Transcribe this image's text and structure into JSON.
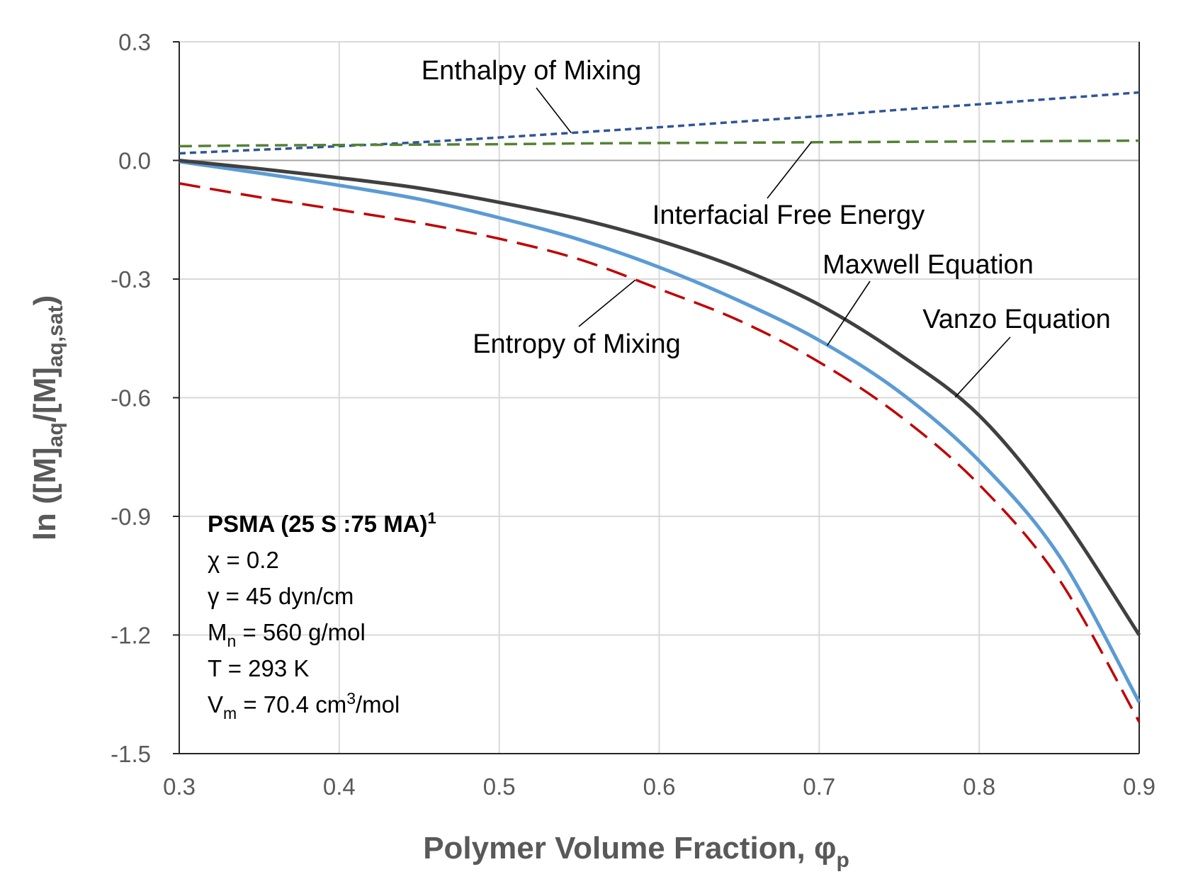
{
  "chart_data": {
    "type": "line",
    "title": "",
    "xlabel": "Polymer Volume Fraction, φp",
    "xlabel_main": "Polymer Volume Fraction, φ",
    "xlabel_sub": "p",
    "ylabel_parts": [
      "ln ([M]",
      "aq",
      "/[M]",
      "aq,sat",
      ")"
    ],
    "xlim": [
      0.3,
      0.9
    ],
    "ylim": [
      -1.5,
      0.3
    ],
    "x_ticks": [
      0.3,
      0.4,
      0.5,
      0.6,
      0.7,
      0.8,
      0.9
    ],
    "x_tick_labels": [
      "0.3",
      "0.4",
      "0.5",
      "0.6",
      "0.7",
      "0.8",
      "0.9"
    ],
    "y_ticks": [
      0.3,
      0.0,
      -0.3,
      -0.6,
      -0.9,
      -1.2,
      -1.5
    ],
    "y_tick_labels": [
      "0.3",
      "0.0",
      "-0.3",
      "-0.6",
      "-0.9",
      "-1.2",
      "-1.5"
    ],
    "grid": true,
    "x": [
      0.3,
      0.35,
      0.4,
      0.45,
      0.5,
      0.55,
      0.6,
      0.65,
      0.7,
      0.75,
      0.8,
      0.85,
      0.9
    ],
    "series": [
      {
        "name": "Enthalpy of Mixing",
        "color": "#2F5597",
        "dash": "short",
        "values": [
          0.018,
          0.027,
          0.036,
          0.046,
          0.058,
          0.071,
          0.084,
          0.098,
          0.112,
          0.128,
          0.142,
          0.157,
          0.172
        ]
      },
      {
        "name": "Interfacial Free Energy",
        "color": "#548235",
        "dash": "medium",
        "values": [
          0.036,
          0.038,
          0.039,
          0.04,
          0.041,
          0.043,
          0.044,
          0.045,
          0.046,
          0.047,
          0.048,
          0.049,
          0.05
        ]
      },
      {
        "name": "Entropy of Mixing",
        "color": "#C00000",
        "dash": "long",
        "values": [
          -0.058,
          -0.093,
          -0.125,
          -0.158,
          -0.198,
          -0.25,
          -0.325,
          -0.405,
          -0.51,
          -0.645,
          -0.82,
          -1.06,
          -1.42
        ]
      },
      {
        "name": "Maxwell Equation",
        "color": "#5B9BD5",
        "dash": "solid",
        "values": [
          -0.003,
          -0.032,
          -0.063,
          -0.098,
          -0.145,
          -0.2,
          -0.27,
          -0.355,
          -0.455,
          -0.585,
          -0.76,
          -1.0,
          -1.37
        ]
      },
      {
        "name": "Vanzo Equation",
        "color": "#404040",
        "dash": "solid",
        "values": [
          0.0,
          -0.021,
          -0.044,
          -0.07,
          -0.106,
          -0.148,
          -0.203,
          -0.273,
          -0.365,
          -0.49,
          -0.645,
          -0.89,
          -1.2
        ]
      }
    ],
    "annotations": [
      {
        "text": "Enthalpy of Mixing",
        "series": "Enthalpy of Mixing"
      },
      {
        "text": "Interfacial Free Energy",
        "series": "Interfacial Free Energy"
      },
      {
        "text": "Maxwell Equation",
        "series": "Maxwell Equation"
      },
      {
        "text": "Vanzo Equation",
        "series": "Vanzo Equation"
      },
      {
        "text": "Entropy of Mixing",
        "series": "Entropy of Mixing"
      }
    ]
  },
  "info_box": {
    "title": "PSMA (25 S :75 MA)",
    "title_sup": "1",
    "chi": "χ = 0.2",
    "gamma": "γ = 45 dyn/cm",
    "mn_main": "M",
    "mn_sub": "n",
    "mn_rest": " = 560 g/mol",
    "temp": "T = 293 K",
    "vm_main": "V",
    "vm_sub": "m",
    "vm_mid": " = 70.4 cm",
    "vm_sup": "3",
    "vm_rest": "/mol"
  }
}
